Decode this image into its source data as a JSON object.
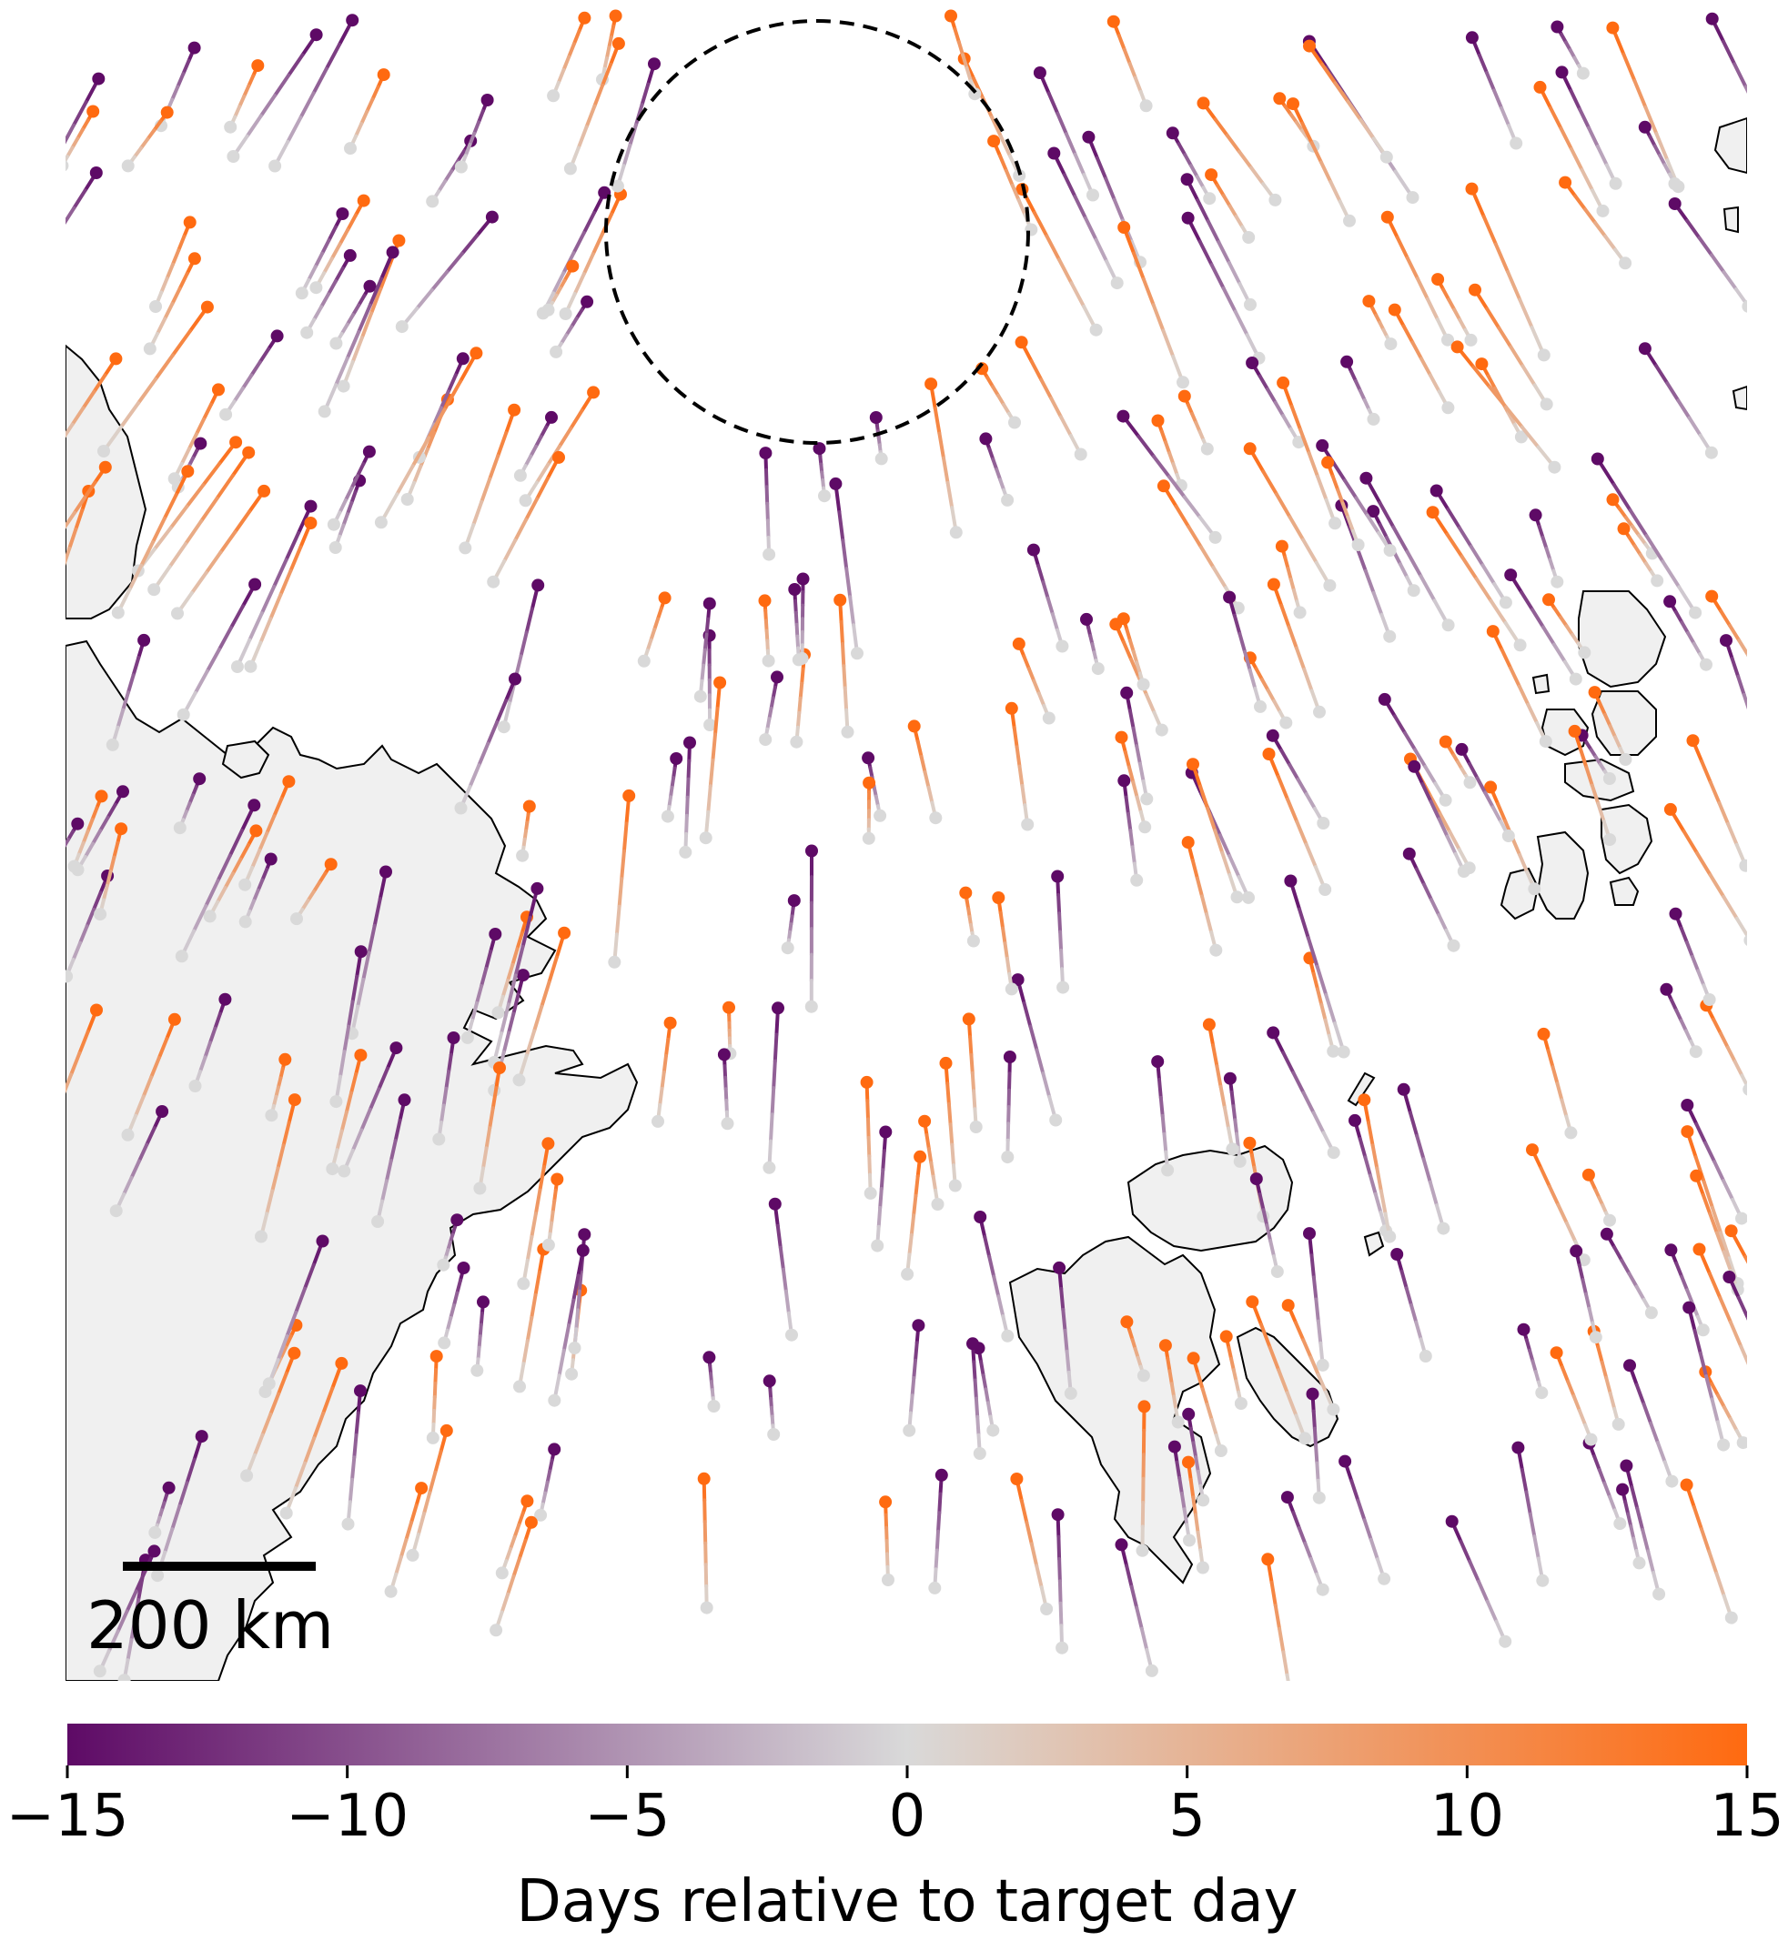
{
  "scale_bar": {
    "label": "200 km"
  },
  "colorbar": {
    "label": "Days relative to target day",
    "min": -15,
    "max": 15,
    "ticks": [
      {
        "value": -15,
        "label": "−15"
      },
      {
        "value": -10,
        "label": "−10"
      },
      {
        "value": -5,
        "label": "−5"
      },
      {
        "value": 0,
        "label": "0"
      },
      {
        "value": 5,
        "label": "5"
      },
      {
        "value": 10,
        "label": "10"
      },
      {
        "value": 15,
        "label": "15"
      }
    ],
    "colors": {
      "negative_end": "#5e0a66",
      "center": "#d9d9d9",
      "positive_end": "#ff6a10"
    }
  },
  "colors": {
    "land": "#f0f0f0",
    "coastline": "#000000",
    "circle": "#000000"
  }
}
